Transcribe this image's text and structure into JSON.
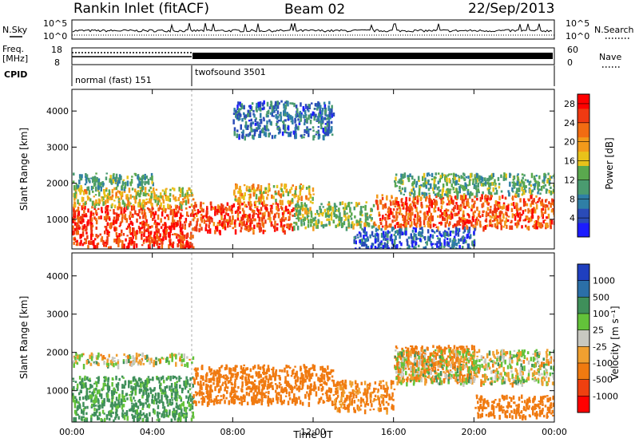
{
  "header": {
    "station": "Rankin Inlet (fitACF)",
    "beam": "Beam 02",
    "date": "22/Sep/2013"
  },
  "top_panels": {
    "nsky_label": "N.Sky",
    "nsearch_label": "N.Search",
    "nsky_ticks": [
      "10^5",
      "10^0"
    ],
    "freq_label_1": "Freq.",
    "freq_label_2": "[MHz]",
    "freq_ticks": [
      "18",
      "8"
    ],
    "nave_label": "Nave",
    "nave_ticks": [
      "60",
      "0"
    ],
    "cpid_label": "CPID",
    "cpid_segments": [
      {
        "name": "normal (fast)",
        "id": "151",
        "start_hour": 0,
        "end_hour": 6
      },
      {
        "name": "twofsound",
        "id": "3501",
        "start_hour": 6,
        "end_hour": 24
      }
    ]
  },
  "axes": {
    "x_ticks": [
      "00:00",
      "04:00",
      "08:00",
      "12:00",
      "16:00",
      "20:00",
      "00:00"
    ],
    "x_label": "Time UT",
    "y_label": "Slant Range [km]",
    "y_ticks": [
      "1000",
      "2000",
      "3000",
      "4000"
    ]
  },
  "chart_data": [
    {
      "type": "heatmap",
      "title": "",
      "xlabel": "Time UT",
      "ylabel": "Slant Range [km]",
      "xlim_hours": [
        0,
        24
      ],
      "ylim_km": [
        180,
        4600
      ],
      "colorbar": {
        "label": "Power [dB]",
        "ticks": [
          "4",
          "8",
          "12",
          "16",
          "20",
          "24",
          "28"
        ],
        "range": [
          0,
          30
        ],
        "colors": [
          "#1c1cff",
          "#2a4bb8",
          "#2f7fa6",
          "#4a9b70",
          "#5aa84e",
          "#e8c21a",
          "#f39a1a",
          "#f26c12",
          "#ef3a12",
          "#ff0000"
        ]
      },
      "regions": [
        {
          "t0": 0.0,
          "t1": 6.0,
          "r0": 250,
          "r1": 1400,
          "value": 26
        },
        {
          "t0": 0.0,
          "t1": 6.0,
          "r0": 1400,
          "r1": 1900,
          "value": 17
        },
        {
          "t0": 0.0,
          "t1": 4.0,
          "r0": 1900,
          "r1": 2300,
          "value": 11
        },
        {
          "t0": 6.0,
          "t1": 11.0,
          "r0": 700,
          "r1": 1500,
          "value": 25
        },
        {
          "t0": 8.0,
          "t1": 12.0,
          "r0": 1500,
          "r1": 2000,
          "value": 18
        },
        {
          "t0": 11.0,
          "t1": 15.0,
          "r0": 800,
          "r1": 1500,
          "value": 14
        },
        {
          "t0": 15.0,
          "t1": 24.0,
          "r0": 800,
          "r1": 1700,
          "value": 24
        },
        {
          "t0": 16.0,
          "t1": 24.0,
          "r0": 1700,
          "r1": 2300,
          "value": 12
        },
        {
          "t0": 14.0,
          "t1": 20.0,
          "r0": 200,
          "r1": 800,
          "value": 6
        },
        {
          "t0": 8.0,
          "t1": 13.0,
          "r0": 3300,
          "r1": 4300,
          "value": 7
        }
      ]
    },
    {
      "type": "heatmap",
      "title": "",
      "xlabel": "Time UT",
      "ylabel": "Slant Range [km]",
      "xlim_hours": [
        0,
        24
      ],
      "ylim_km": [
        180,
        4600
      ],
      "colorbar": {
        "label": "Velocity [m s⁻¹]",
        "ticks": [
          "1000",
          "500",
          "100",
          "25",
          "-25",
          "-100",
          "-500",
          "-1000"
        ],
        "colors": [
          "#1f3fbf",
          "#2b6fa8",
          "#3f8f5a",
          "#63c23a",
          "#c8c8c0",
          "#f0a030",
          "#f07a10",
          "#ef4010",
          "#ff0000"
        ]
      },
      "regions": [
        {
          "t0": 0.0,
          "t1": 6.0,
          "r0": 250,
          "r1": 1400,
          "value": 150
        },
        {
          "t0": 0.0,
          "t1": 6.0,
          "r0": 1700,
          "r1": 2000,
          "value": 0
        },
        {
          "t0": 6.0,
          "t1": 13.0,
          "r0": 700,
          "r1": 1700,
          "value": -300
        },
        {
          "t0": 13.0,
          "t1": 16.0,
          "r0": 500,
          "r1": 1300,
          "value": -150
        },
        {
          "t0": 16.0,
          "t1": 20.0,
          "r0": 1300,
          "r1": 2200,
          "value": -300
        },
        {
          "t0": 16.0,
          "t1": 24.0,
          "r0": 1200,
          "r1": 2100,
          "value": 0
        },
        {
          "t0": 20.0,
          "t1": 24.0,
          "r0": 350,
          "r1": 900,
          "value": -300
        }
      ]
    }
  ]
}
